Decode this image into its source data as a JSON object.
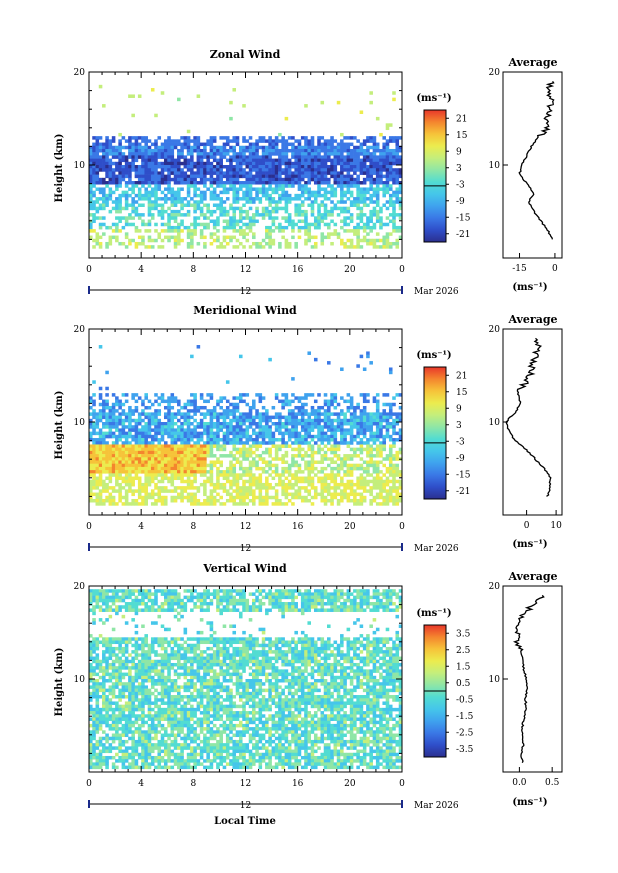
{
  "colors": {
    "scale": [
      "#2b2f8f",
      "#2f4ec9",
      "#3a78e6",
      "#3fa2ee",
      "#45c6ea",
      "#52dcd2",
      "#8fe6a6",
      "#c4ee7c",
      "#ecec4e",
      "#f6c339",
      "#f4852e",
      "#e8372a"
    ],
    "frame": "#000000",
    "background": "#ffffff"
  },
  "x_axis": {
    "ticks": [
      "0",
      "4",
      "8",
      "12",
      "16",
      "20",
      "0"
    ],
    "day_label": "12",
    "month_label": "Mar 2026",
    "label": "Local Time"
  },
  "avg_title": "Average",
  "units": "(ms⁻¹)",
  "y_axis_label": "Height (km)",
  "panels": [
    {
      "title": "Zonal Wind",
      "ylim": [
        0,
        20
      ],
      "y_ticks": [
        "20",
        "10"
      ],
      "colorbar_ticks": [
        "21",
        "15",
        "9",
        "3",
        "-3",
        "-9",
        "-15",
        "-21"
      ],
      "colorbar_range": [
        -24,
        24
      ],
      "avg_x_ticks": [
        "-15",
        "0"
      ],
      "avg_xlim": [
        -22,
        3
      ]
    },
    {
      "title": "Meridional Wind",
      "ylim": [
        0,
        20
      ],
      "y_ticks": [
        "20",
        "10"
      ],
      "colorbar_ticks": [
        "21",
        "15",
        "9",
        "3",
        "-3",
        "-9",
        "-15",
        "-21"
      ],
      "colorbar_range": [
        -24,
        24
      ],
      "avg_x_ticks": [
        "0",
        "10"
      ],
      "avg_xlim": [
        -8,
        12
      ]
    },
    {
      "title": "Vertical Wind",
      "ylim": [
        0,
        20
      ],
      "y_ticks": [
        "20",
        "10"
      ],
      "colorbar_ticks": [
        "3.5",
        "2.5",
        "1.5",
        "0.5",
        "-0.5",
        "-1.5",
        "-2.5",
        "-3.5"
      ],
      "colorbar_range": [
        -4,
        4
      ],
      "avg_x_ticks": [
        "0.0",
        "0.5"
      ],
      "avg_xlim": [
        -0.25,
        0.65
      ]
    }
  ],
  "chart_data": [
    {
      "type": "heatmap",
      "title": "Zonal Wind",
      "xlabel": "Local Time",
      "ylabel": "Height (km)",
      "units": "m/s",
      "xlim": [
        0,
        24
      ],
      "ylim": [
        0,
        20
      ],
      "colorbar": [
        -24,
        24
      ],
      "average_profile": {
        "height_km": [
          2,
          3,
          4,
          5,
          6,
          7,
          8,
          9,
          10,
          11,
          12,
          13,
          14,
          15,
          16,
          17,
          18,
          19
        ],
        "value": [
          -1,
          -3,
          -6,
          -9,
          -11,
          -9,
          -12,
          -15,
          -14,
          -12,
          -10,
          -7,
          -3,
          -4,
          -2,
          -1,
          -3,
          -1
        ]
      }
    },
    {
      "type": "heatmap",
      "title": "Meridional Wind",
      "xlabel": "Local Time",
      "ylabel": "Height (km)",
      "units": "m/s",
      "xlim": [
        0,
        24
      ],
      "ylim": [
        0,
        20
      ],
      "colorbar": [
        -24,
        24
      ],
      "average_profile": {
        "height_km": [
          2,
          3,
          4,
          5,
          6,
          7,
          8,
          9,
          10,
          11,
          12,
          13,
          14,
          15,
          16,
          17,
          18,
          19
        ],
        "value": [
          7,
          8,
          8,
          6,
          3,
          0,
          -4,
          -6,
          -7,
          -4,
          -2,
          -3,
          -1,
          1,
          2,
          3,
          4,
          3
        ]
      }
    },
    {
      "type": "heatmap",
      "title": "Vertical Wind",
      "xlabel": "Local Time",
      "ylabel": "Height (km)",
      "units": "m/s",
      "xlim": [
        0,
        24
      ],
      "ylim": [
        0,
        20
      ],
      "colorbar": [
        -4,
        4
      ],
      "average_profile": {
        "height_km": [
          1,
          2,
          3,
          4,
          5,
          6,
          7,
          8,
          9,
          10,
          11,
          12,
          13,
          14,
          15,
          16,
          17,
          18,
          19
        ],
        "value": [
          0.05,
          0.03,
          0.06,
          0.04,
          0.05,
          0.08,
          0.1,
          0.09,
          0.12,
          0.1,
          0.07,
          0.05,
          0.02,
          -0.02,
          -0.05,
          0.0,
          0.08,
          0.2,
          0.35
        ]
      }
    }
  ]
}
